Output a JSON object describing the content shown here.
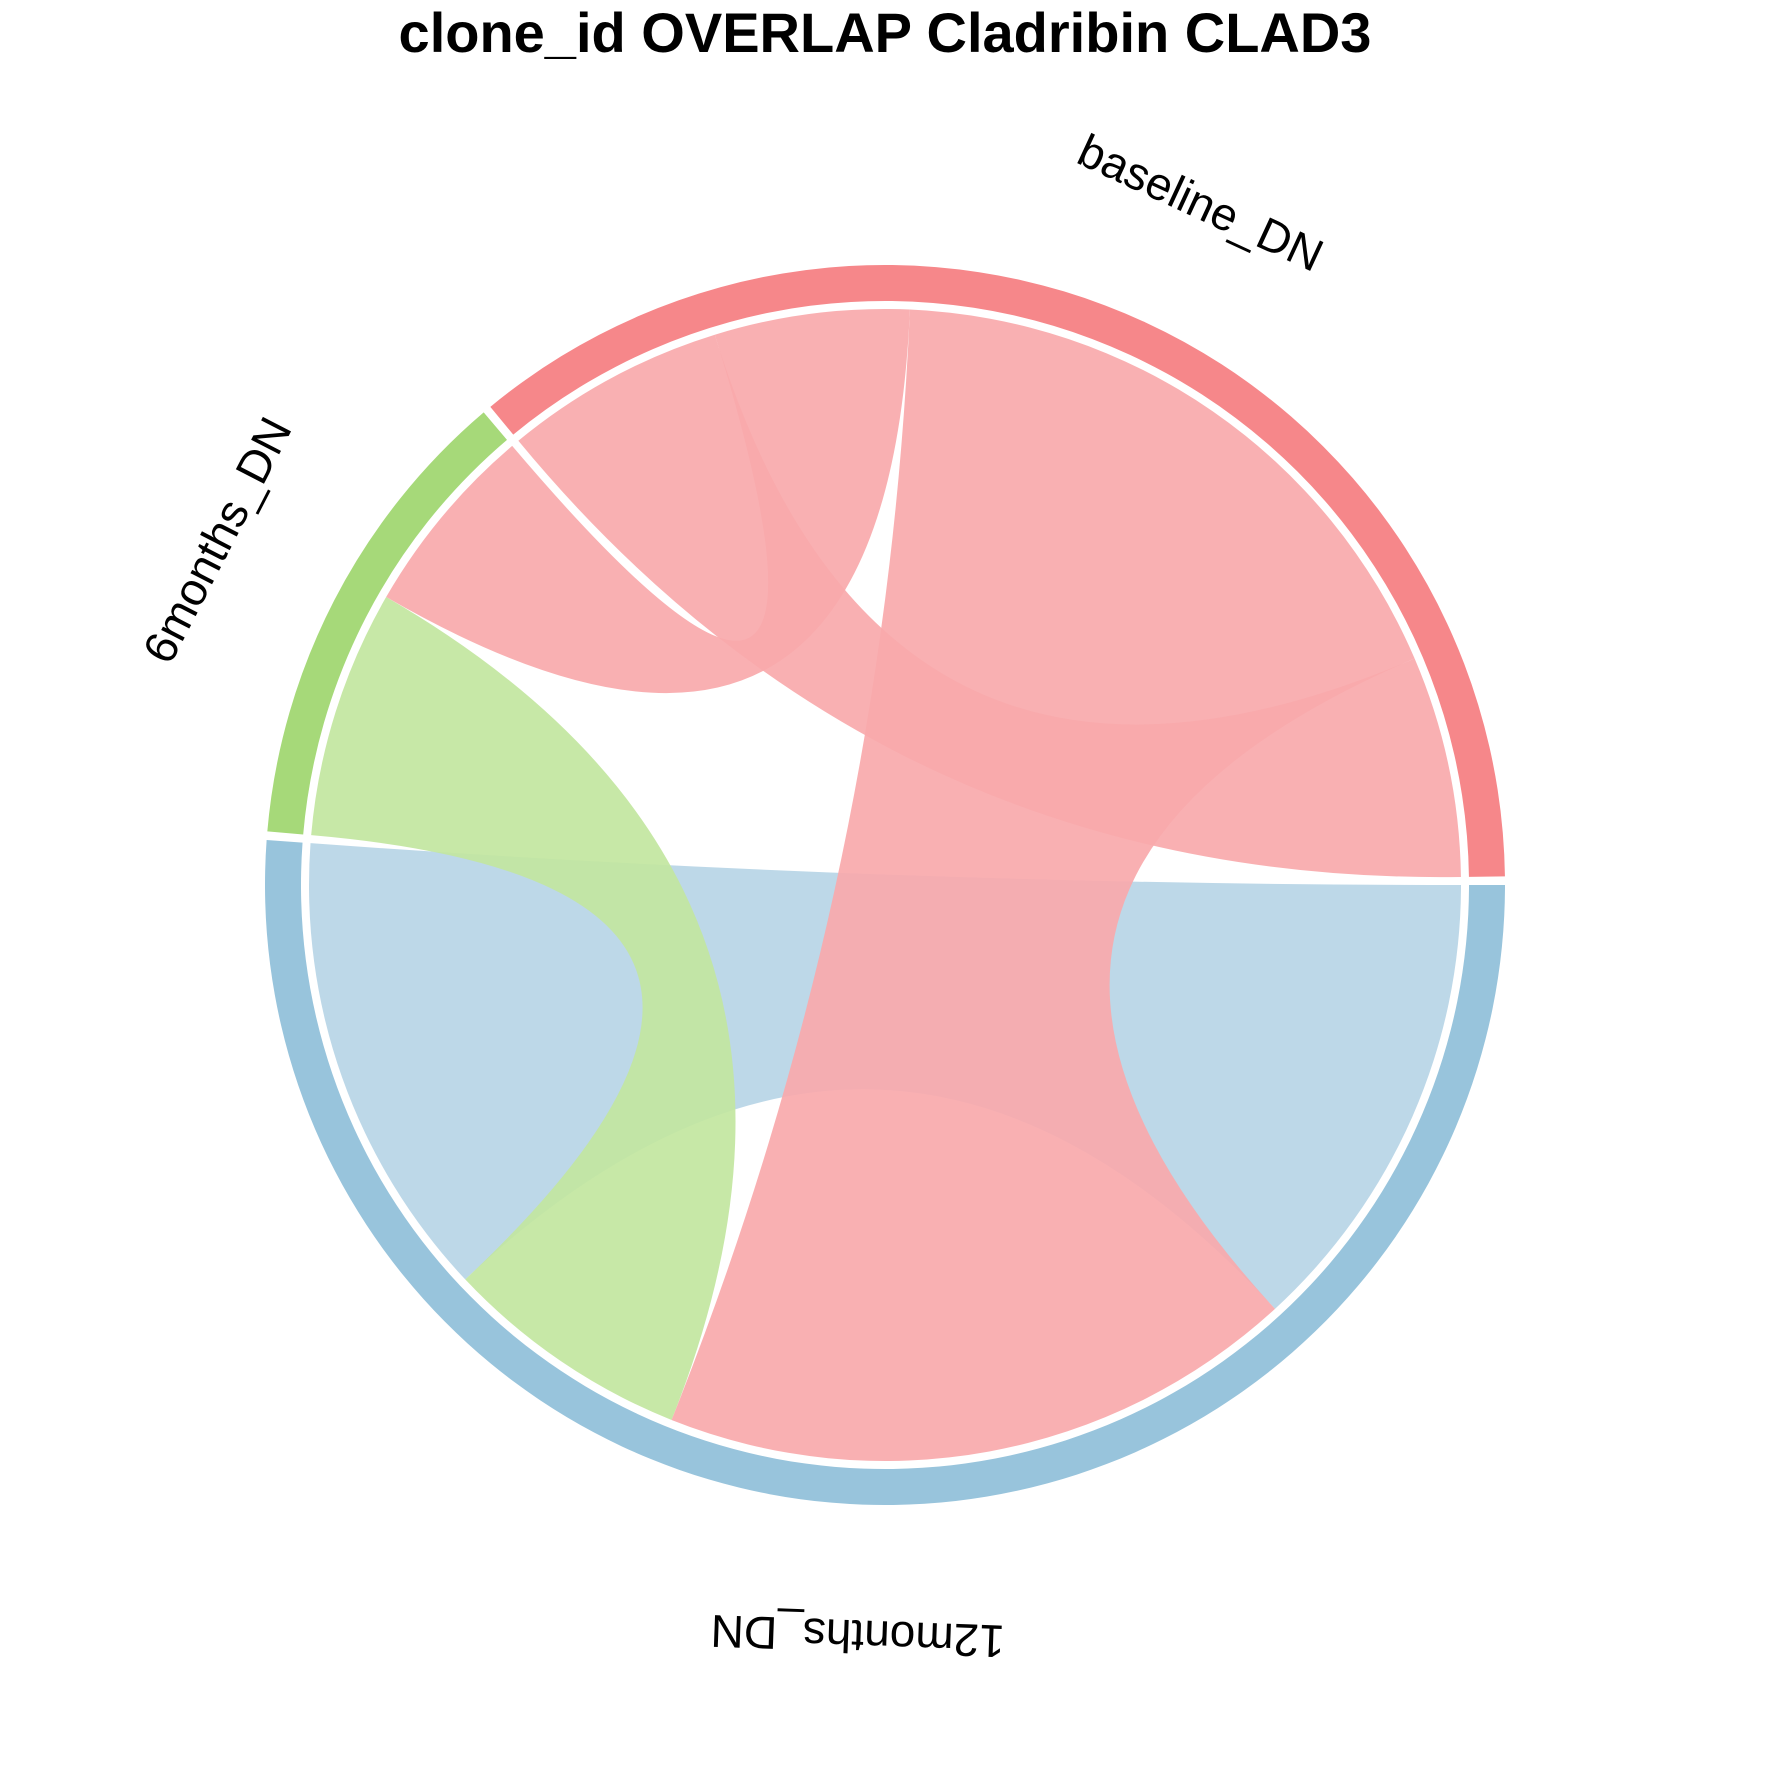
{
  "chart_data": {
    "type": "chord",
    "title": "clone_id OVERLAP Cladribin CLAD3",
    "sectors": [
      {
        "name": "12months_DN",
        "value": 51.5,
        "color": "#98c4dc",
        "ribbon_color": "#b7d5e6"
      },
      {
        "name": "6months_DN",
        "value": 12.5,
        "color": "#a6d979",
        "ribbon_color": "#c2e6a0"
      },
      {
        "name": "baseline_DN",
        "value": 36.0,
        "color": "#f6878a",
        "ribbon_color": "#f9a9ab"
      }
    ],
    "links": [
      {
        "from": "12months_DN",
        "to": "12months_DN",
        "value": 26.5
      },
      {
        "from": "12months_DN",
        "to": "6months_DN",
        "value": 7.0
      },
      {
        "from": "12months_DN",
        "to": "baseline_DN",
        "value": 18.0
      },
      {
        "from": "6months_DN",
        "to": "baseline_DN",
        "value": 5.5
      },
      {
        "from": "baseline_DN",
        "to": "baseline_DN",
        "value": 12.5
      }
    ],
    "start_angle_degrees": 0,
    "direction": "clockwise"
  }
}
